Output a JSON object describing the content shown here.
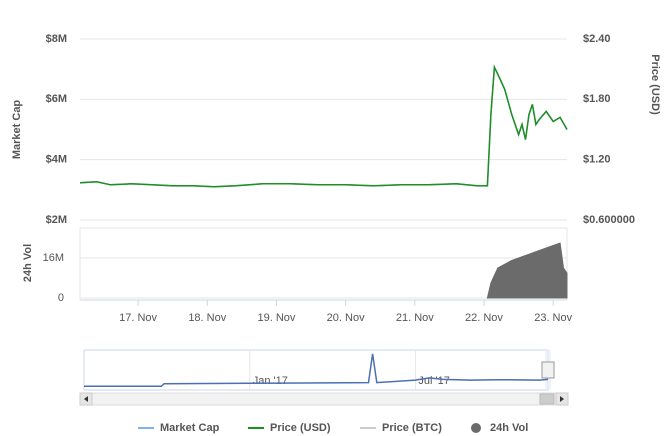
{
  "chart_data": [
    {
      "type": "line",
      "ylabel": "Market Cap",
      "y2label": "Price (USD)",
      "xlim": [
        16.16,
        23.2
      ],
      "ylim": [
        2000000,
        8000000
      ],
      "yticks": [
        {
          "value": 2000000,
          "label": "$2M"
        },
        {
          "value": 4000000,
          "label": "$4M"
        },
        {
          "value": 6000000,
          "label": "$6M"
        },
        {
          "value": 8000000,
          "label": "$8M"
        }
      ],
      "y2lim": [
        0.6,
        2.4
      ],
      "y2ticks": [
        {
          "value": 0.6,
          "label": "$0.600000"
        },
        {
          "value": 1.2,
          "label": "$1.20"
        },
        {
          "value": 1.8,
          "label": "$1.80"
        },
        {
          "value": 2.4,
          "label": "$2.40"
        }
      ],
      "grid": true,
      "x": [
        16.16,
        16.4,
        16.6,
        16.9,
        17.2,
        17.5,
        17.8,
        18.1,
        18.4,
        18.8,
        19.2,
        19.6,
        20.0,
        20.4,
        20.8,
        21.2,
        21.6,
        21.9,
        22.05,
        22.1,
        22.15,
        22.2,
        22.3,
        22.4,
        22.5,
        22.55,
        22.6,
        22.65,
        22.7,
        22.75,
        22.8,
        22.9,
        23.0,
        23.1,
        23.2
      ],
      "series": [
        {
          "name": "Market Cap",
          "color": "#7cb5ec",
          "axis": "y",
          "values": [
            3230000,
            3270000,
            3170000,
            3200000,
            3170000,
            3130000,
            3130000,
            3100000,
            3130000,
            3200000,
            3200000,
            3170000,
            3170000,
            3130000,
            3170000,
            3170000,
            3200000,
            3130000,
            3130000,
            5500000,
            7070000,
            6830000,
            6330000,
            5500000,
            4830000,
            5170000,
            4670000,
            5500000,
            5830000,
            5170000,
            5330000,
            5600000,
            5270000,
            5400000,
            5000000
          ]
        },
        {
          "name": "Price (USD)",
          "color": "#1f8f1f",
          "axis": "y2",
          "values": [
            0.97,
            0.98,
            0.95,
            0.96,
            0.95,
            0.94,
            0.94,
            0.93,
            0.94,
            0.96,
            0.96,
            0.95,
            0.95,
            0.94,
            0.95,
            0.95,
            0.96,
            0.94,
            0.94,
            1.65,
            2.12,
            2.05,
            1.9,
            1.65,
            1.45,
            1.55,
            1.4,
            1.65,
            1.75,
            1.55,
            1.6,
            1.68,
            1.58,
            1.62,
            1.5
          ]
        },
        {
          "name": "Price (BTC)",
          "color": "#cccccc",
          "axis": "y2",
          "hidden": true,
          "values": [
            null,
            null,
            null,
            null,
            null,
            null,
            null,
            null,
            null,
            null,
            null,
            null,
            null,
            null,
            null,
            null,
            null,
            null,
            null,
            null,
            null,
            null,
            null,
            null,
            null,
            null,
            null,
            null,
            null,
            null,
            null,
            null,
            null,
            null,
            null
          ]
        }
      ]
    },
    {
      "type": "area",
      "ylabel": "24h Vol",
      "xlim": [
        16.16,
        23.2
      ],
      "xticks": [
        {
          "value": 17,
          "label": "17. Nov"
        },
        {
          "value": 18,
          "label": "18. Nov"
        },
        {
          "value": 19,
          "label": "19. Nov"
        },
        {
          "value": 20,
          "label": "20. Nov"
        },
        {
          "value": 21,
          "label": "21. Nov"
        },
        {
          "value": 22,
          "label": "22. Nov"
        },
        {
          "value": 23,
          "label": "23. Nov"
        }
      ],
      "ylim": [
        0,
        28000000
      ],
      "yticks": [
        0,
        {
          "value": 16000000,
          "label": "16M"
        }
      ],
      "grid": true,
      "x": [
        22.05,
        22.1,
        22.2,
        22.4,
        22.6,
        22.8,
        23.0,
        23.1,
        23.15,
        23.2
      ],
      "series": [
        {
          "name": "24h Vol",
          "color": "#6b6b6b",
          "axis": "y",
          "values": [
            0,
            6000000,
            12000000,
            15000000,
            17000000,
            19000000,
            21000000,
            22000000,
            12000000,
            10000000
          ]
        }
      ]
    },
    {
      "type": "line",
      "xlim": [
        -6,
        10.8
      ],
      "xticks": [
        {
          "value": 0,
          "label": "Jan '17"
        },
        {
          "value": 6,
          "label": "Jul '17"
        }
      ],
      "ylim": [
        0,
        10
      ],
      "x": [
        -6,
        -3.2,
        -3.1,
        0,
        2,
        4.3,
        4.45,
        4.6,
        6,
        6.5,
        7,
        8,
        9,
        10.5,
        10.8
      ],
      "series": [
        {
          "color": "#4a6fb5",
          "axis": "y",
          "values": [
            0.5,
            0.5,
            1.2,
            1.3,
            1.4,
            1.5,
            9.5,
            1.5,
            2.2,
            2.8,
            2.4,
            2.2,
            2.3,
            2.2,
            2.4
          ]
        }
      ]
    }
  ]
}
